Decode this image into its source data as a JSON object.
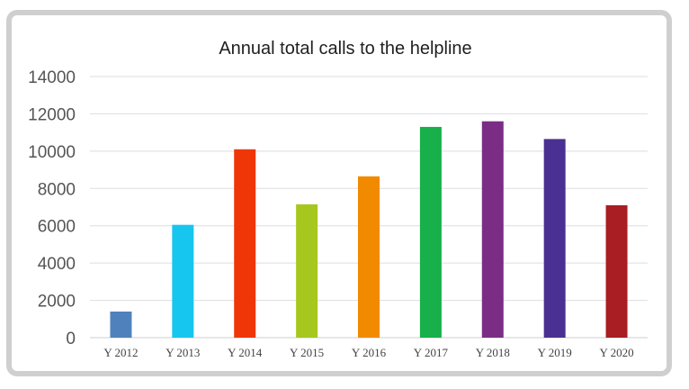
{
  "chart_data": {
    "type": "bar",
    "title": "Annual total calls to the helpline",
    "xlabel": "",
    "ylabel": "",
    "categories": [
      "Y 2012",
      "Y 2013",
      "Y 2014",
      "Y 2015",
      "Y 2016",
      "Y 2017",
      "Y 2018",
      "Y 2019",
      "Y 2020"
    ],
    "values": [
      1400,
      6050,
      10100,
      7150,
      8650,
      11300,
      11600,
      10650,
      7100
    ],
    "colors": [
      "#4f81bd",
      "#17c6ef",
      "#ef3606",
      "#a6c81e",
      "#f28a00",
      "#17b04a",
      "#7b2d85",
      "#4a3092",
      "#a81e22"
    ],
    "ylim": [
      0,
      14000
    ],
    "yticks": [
      "0",
      "2000",
      "4000",
      "6000",
      "8000",
      "10000",
      "12000",
      "14000"
    ],
    "grid": true,
    "legend": "none"
  }
}
